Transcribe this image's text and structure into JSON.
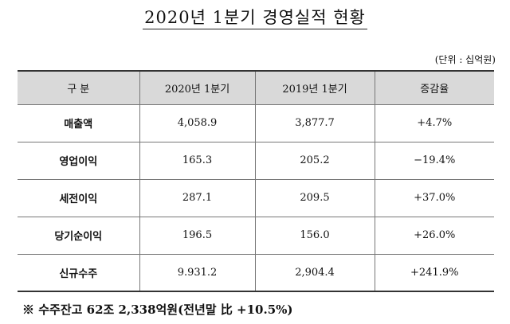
{
  "header": {
    "title": "2020년 1분기 경영실적 현황",
    "unit": "(단위 : 십억원)"
  },
  "table": {
    "columns": [
      "구 분",
      "2020년 1분기",
      "2019년 1분기",
      "증감율"
    ],
    "rows": [
      [
        "매출액",
        "4,058.9",
        "3,877.7",
        "+4.7%"
      ],
      [
        "영업이익",
        "165.3",
        "205.2",
        "−19.4%"
      ],
      [
        "세전이익",
        "287.1",
        "209.5",
        "+37.0%"
      ],
      [
        "당기순이익",
        "196.5",
        "156.0",
        "+26.0%"
      ],
      [
        "신규수주",
        "9.931.2",
        "2,904.4",
        "+241.9%"
      ]
    ]
  },
  "footnote": "※ 수주잔고 62조 2,338억원(전년말 比 +10.5%)"
}
